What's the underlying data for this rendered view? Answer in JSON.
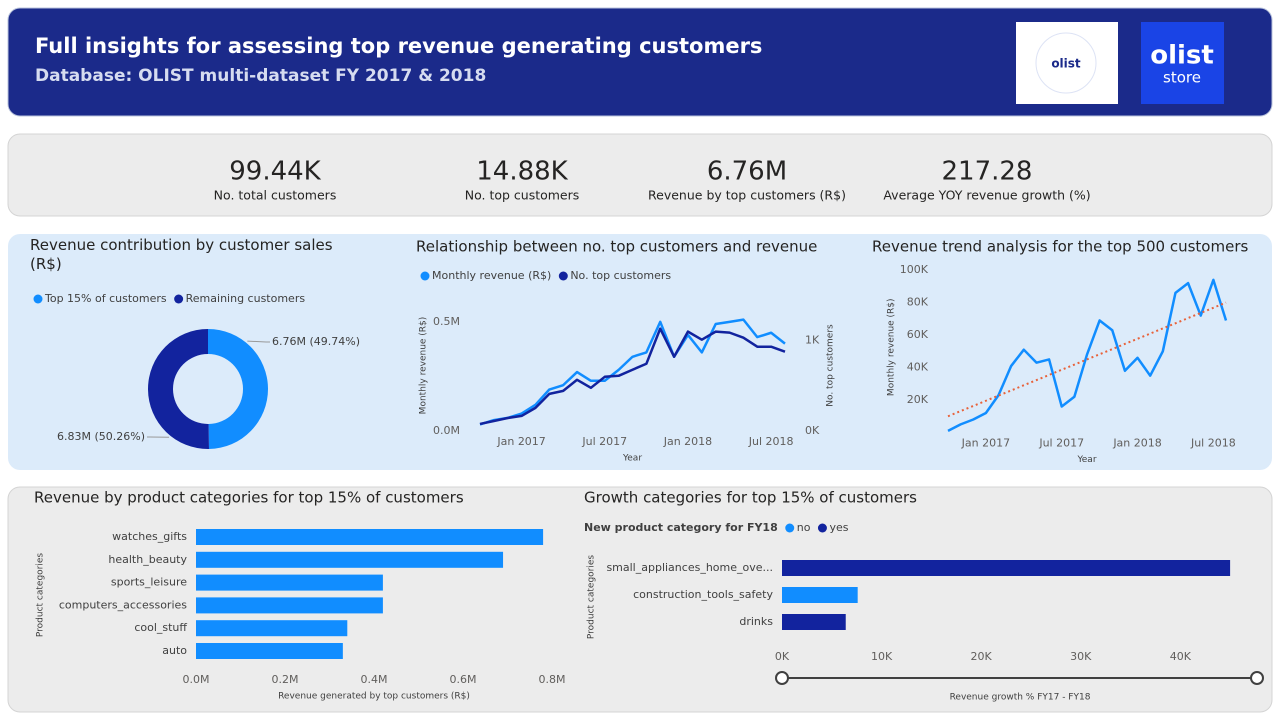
{
  "header": {
    "title": "Full insights for assessing top revenue generating customers",
    "subtitle": "Database: OLIST multi-dataset FY 2017 & 2018",
    "logo_left": "olist",
    "logo_right": [
      "olist",
      "store"
    ]
  },
  "kpis": [
    {
      "value": "99.44K",
      "label": "No. total customers"
    },
    {
      "value": "14.88K",
      "label": "No. top customers"
    },
    {
      "value": "6.76M",
      "label": "Revenue by top customers (R$)"
    },
    {
      "value": "217.28",
      "label": "Average YOY revenue growth (%)"
    }
  ],
  "chart_data": [
    {
      "type": "donut",
      "title": "Revenue contribution by customer sales (R$)",
      "categories": [
        "Top 15% of customers",
        "Remaining customers"
      ],
      "values": [
        49.74,
        50.26
      ],
      "value_labels": [
        "6.76M (49.74%)",
        "6.83M (50.26%)"
      ],
      "colors": [
        "#118dff",
        "#12239e"
      ]
    },
    {
      "type": "line",
      "title": "Relationship between no. top customers and revenue",
      "x": [
        "2016-10",
        "2016-11",
        "2016-12",
        "2017-01",
        "2017-02",
        "2017-03",
        "2017-04",
        "2017-05",
        "2017-06",
        "2017-07",
        "2017-08",
        "2017-09",
        "2017-10",
        "2017-11",
        "2017-12",
        "2018-01",
        "2018-02",
        "2018-03",
        "2018-04",
        "2018-05",
        "2018-06",
        "2018-07",
        "2018-08"
      ],
      "xticks": [
        {
          "value": "2017-01",
          "label": "Jan 2017"
        },
        {
          "value": "2017-07",
          "label": "Jul 2017"
        },
        {
          "value": "2018-01",
          "label": "Jan 2018"
        },
        {
          "value": "2018-07",
          "label": "Jul 2018"
        }
      ],
      "xlabel": "Year",
      "ylabel": "Monthly revenue (R$)",
      "y2label": "No. top customers",
      "ylim": [
        0,
        0.6
      ],
      "yticks": [
        {
          "value": 0,
          "label": "0.0M"
        },
        {
          "value": 0.5,
          "label": "0.5M"
        }
      ],
      "y2lim": [
        0,
        1450
      ],
      "y2ticks": [
        {
          "value": 0,
          "label": "0K"
        },
        {
          "value": 1000,
          "label": "1K"
        }
      ],
      "series": [
        {
          "name": "Monthly revenue (R$)",
          "color": "#118dff",
          "values": [
            0.03,
            0.05,
            0.06,
            0.08,
            0.12,
            0.19,
            0.21,
            0.27,
            0.23,
            0.23,
            0.28,
            0.34,
            0.36,
            0.5,
            0.34,
            0.44,
            0.36,
            0.49,
            0.5,
            0.51,
            0.43,
            0.45,
            0.4
          ]
        },
        {
          "name": "No. top customers",
          "color": "#12239e",
          "axis": "y2",
          "values": [
            78,
            111,
            144,
            167,
            256,
            411,
            444,
            567,
            478,
            600,
            611,
            678,
            744,
            1133,
            822,
            1100,
            1011,
            1100,
            1089,
            1033,
            933,
            933,
            878
          ]
        }
      ]
    },
    {
      "type": "line",
      "title": "Revenue trend analysis for the top 500 customers",
      "x": [
        "2016-10",
        "2016-11",
        "2016-12",
        "2017-01",
        "2017-02",
        "2017-03",
        "2017-04",
        "2017-05",
        "2017-06",
        "2017-07",
        "2017-08",
        "2017-09",
        "2017-10",
        "2017-11",
        "2017-12",
        "2018-01",
        "2018-02",
        "2018-03",
        "2018-04",
        "2018-05",
        "2018-06",
        "2018-07",
        "2018-08"
      ],
      "xticks": [
        {
          "value": "2017-01",
          "label": "Jan 2017"
        },
        {
          "value": "2017-07",
          "label": "Jul 2017"
        },
        {
          "value": "2018-01",
          "label": "Jan 2018"
        },
        {
          "value": "2018-07",
          "label": "Jul 2018"
        }
      ],
      "xlabel": "Year",
      "ylabel": "Monthly revenue (R$)",
      "ylim": [
        0,
        105
      ],
      "yticks": [
        {
          "value": 20,
          "label": "20K"
        },
        {
          "value": 40,
          "label": "40K"
        },
        {
          "value": 60,
          "label": "60K"
        },
        {
          "value": 80,
          "label": "80K"
        },
        {
          "value": 100,
          "label": "100K"
        }
      ],
      "series": [
        {
          "color": "#118dff",
          "values": [
            1,
            5,
            8,
            12,
            23,
            41,
            51,
            43,
            45,
            16,
            22,
            48,
            69,
            63,
            38,
            46,
            35,
            50,
            86,
            92,
            72,
            94,
            69
          ]
        }
      ],
      "trendline": {
        "color": "#e8623a",
        "x": [
          "2016-10",
          "2018-08"
        ],
        "values": [
          10,
          80
        ]
      }
    },
    {
      "type": "hbar",
      "title": "Revenue by product categories for top 15% of customers",
      "categories": [
        "watches_gifts",
        "health_beauty",
        "sports_leisure",
        "computers_accessories",
        "cool_stuff",
        "auto"
      ],
      "values": [
        0.78,
        0.69,
        0.42,
        0.42,
        0.34,
        0.33
      ],
      "color": "#118dff",
      "xlim": [
        0,
        0.8
      ],
      "xticks": [
        {
          "value": 0,
          "label": "0.0M"
        },
        {
          "value": 0.2,
          "label": "0.2M"
        },
        {
          "value": 0.4,
          "label": "0.4M"
        },
        {
          "value": 0.6,
          "label": "0.6M"
        },
        {
          "value": 0.8,
          "label": "0.8M"
        }
      ],
      "xlabel": "Revenue generated by top customers (R$)",
      "ylabel": "Product categories"
    },
    {
      "type": "hbar",
      "title": "Growth categories for top 15% of customers",
      "legend_title": "New product category for FY18",
      "categories": [
        "small_appliances_home_ove...",
        "construction_tools_safety",
        "drinks"
      ],
      "series": [
        {
          "name": "no",
          "color": "#118dff",
          "values": [
            null,
            7600,
            null
          ]
        },
        {
          "name": "yes",
          "color": "#12239e",
          "values": [
            45000,
            null,
            6400
          ]
        }
      ],
      "xlim": [
        0,
        47500
      ],
      "xticks": [
        {
          "value": 0,
          "label": "0K"
        },
        {
          "value": 10000,
          "label": "10K"
        },
        {
          "value": 20000,
          "label": "20K"
        },
        {
          "value": 30000,
          "label": "30K"
        },
        {
          "value": 40000,
          "label": "40K"
        }
      ],
      "xlabel": "Revenue growth % FY17 - FY18",
      "ylabel": "Product categories"
    }
  ]
}
